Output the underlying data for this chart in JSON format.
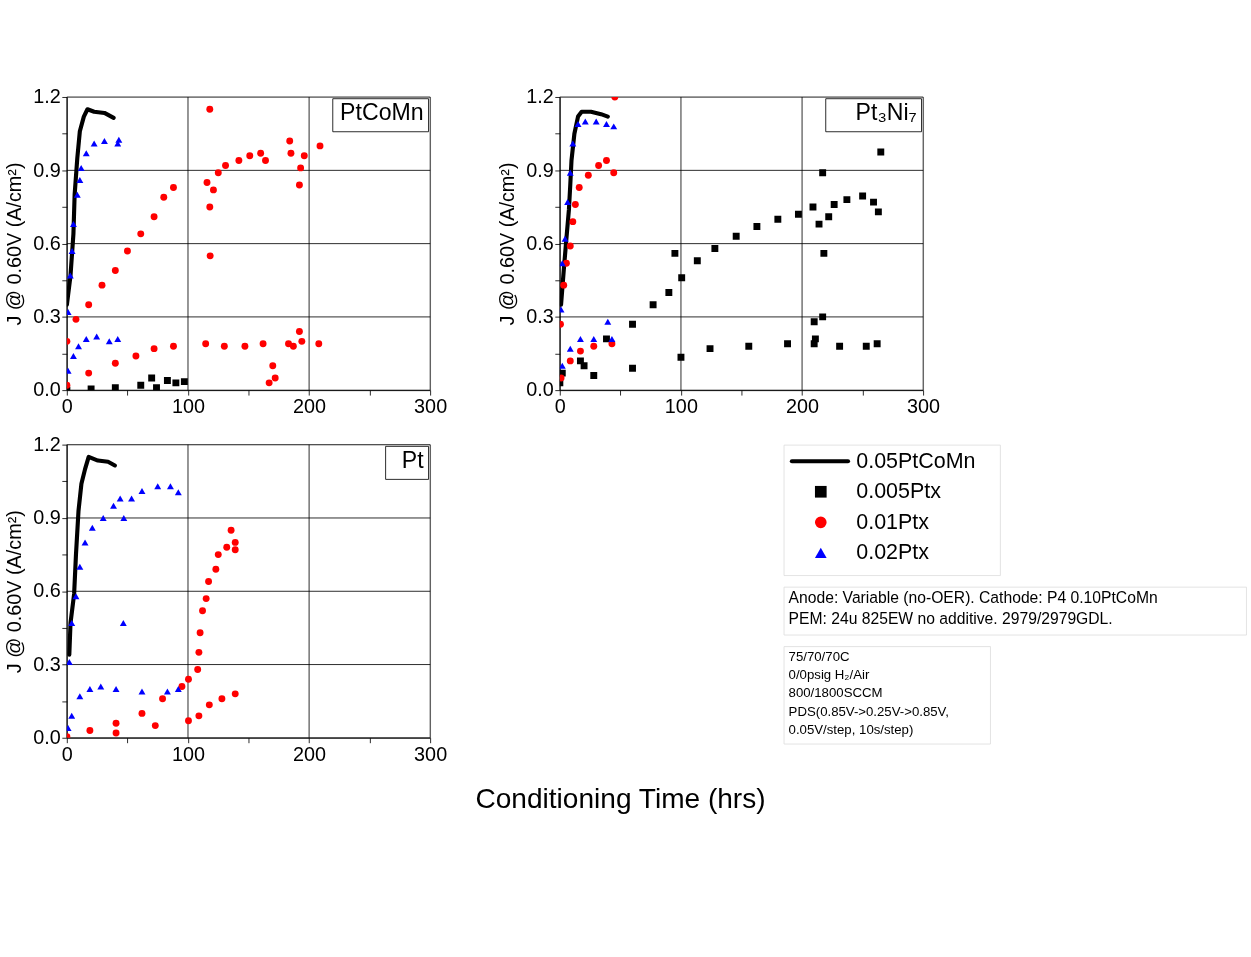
{
  "chart_data": [
    {
      "type": "scatter",
      "title": "PtCoMn",
      "ylabel": "J @ 0.60V (A/cm²)",
      "xlim": [
        0,
        300
      ],
      "ylim": [
        0,
        1.2
      ],
      "xticks": [
        0,
        {
          "value": 50,
          "label": null
        },
        100,
        {
          "value": 150,
          "label": null
        },
        200,
        {
          "value": 250,
          "label": null
        },
        300
      ],
      "yticks": [
        {
          "value": 0,
          "label": "0.0"
        },
        {
          "value": 0.15,
          "label": null
        },
        0.3,
        {
          "value": 0.45,
          "label": null
        },
        0.6,
        {
          "value": 0.75,
          "label": null
        },
        0.9,
        {
          "value": 1.05,
          "label": null
        },
        1.2
      ],
      "grid": true,
      "series": [
        {
          "type": "line",
          "color": "#000000",
          "marker": "none",
          "x": [
            0,
            3,
            5.4,
            6.4,
            8.6,
            10.7,
            14,
            17,
            22.5,
            31,
            38.6
          ],
          "values": [
            0.35,
            0.47,
            0.64,
            0.8,
            0.95,
            1.06,
            1.12,
            1.15,
            1.14,
            1.135,
            1.115
          ]
        },
        {
          "type": "scatter",
          "color": "#000000",
          "marker": "square",
          "x": [
            0,
            20,
            40,
            61,
            70,
            74,
            83,
            90,
            97
          ],
          "values": [
            0.0,
            0.005,
            0.01,
            0.02,
            0.05,
            0.01,
            0.04,
            0.03,
            0.035
          ]
        },
        {
          "type": "scatter",
          "color": "#ff0000",
          "marker": "circle",
          "x": [
            0,
            7.5,
            18,
            29,
            40,
            50,
            61,
            72,
            80,
            88,
            115.7,
            118,
            118,
            118.3,
            121,
            125,
            131,
            142,
            151,
            160,
            164,
            184,
            185,
            192,
            193,
            196,
            209
          ],
          "values": [
            0.2,
            0.29,
            0.35,
            0.43,
            0.49,
            0.57,
            0.64,
            0.71,
            0.79,
            0.83,
            0.85,
            0.75,
            1.15,
            0.55,
            0.82,
            0.89,
            0.92,
            0.94,
            0.96,
            0.97,
            0.94,
            1.02,
            0.97,
            0.84,
            0.91,
            0.96,
            1.0
          ]
        },
        {
          "type": "scatter",
          "color": "#ff0000",
          "marker": "circle",
          "x": [
            0,
            18,
            40,
            57,
            72,
            88,
            114.6,
            130,
            147,
            162,
            167,
            170,
            172,
            183,
            187,
            192,
            194,
            208
          ],
          "values": [
            0.02,
            0.07,
            0.11,
            0.14,
            0.17,
            0.18,
            0.19,
            0.18,
            0.18,
            0.19,
            0.03,
            0.1,
            0.05,
            0.19,
            0.18,
            0.24,
            0.2,
            0.19
          ]
        },
        {
          "type": "scatter",
          "color": "#0000ff",
          "marker": "triangle",
          "x": [
            1,
            2.8,
            4.3,
            5.4,
            8.6,
            10.7,
            11.8,
            16,
            22.5,
            31,
            42,
            42.9
          ],
          "values": [
            0.32,
            0.47,
            0.57,
            0.68,
            0.8,
            0.86,
            0.91,
            0.97,
            1.01,
            1.02,
            1.01,
            1.025
          ]
        },
        {
          "type": "scatter",
          "color": "#0000ff",
          "marker": "triangle",
          "x": [
            1,
            5.4,
            9.6,
            16,
            24.6,
            35,
            42
          ],
          "values": [
            0.08,
            0.14,
            0.18,
            0.21,
            0.22,
            0.2,
            0.21
          ]
        }
      ]
    },
    {
      "type": "scatter",
      "title": "Pt₃Ni₇",
      "ylabel": "J @ 0.60V (A/cm²)",
      "xlim": [
        0,
        300
      ],
      "ylim": [
        0,
        1.2
      ],
      "xticks": [
        0,
        {
          "value": 50,
          "label": null
        },
        100,
        {
          "value": 150,
          "label": null
        },
        200,
        {
          "value": 250,
          "label": null
        },
        300
      ],
      "yticks": [
        {
          "value": 0,
          "label": "0.0"
        },
        {
          "value": 0.15,
          "label": null
        },
        0.3,
        {
          "value": 0.45,
          "label": null
        },
        0.6,
        {
          "value": 0.75,
          "label": null
        },
        0.9,
        {
          "value": 1.05,
          "label": null
        },
        1.2
      ],
      "grid": true,
      "legend": "bottom",
      "annotations": [
        "Anode:  Variable (no-OER).  Cathode:  P4 0.10PtCoMn\nPEM:  24u 825EW no additive.  2979/2979GDL.",
        "75/70/70C\n0/0psig H₂/Air\n800/1800SCCM\nPDS(0.85V->0.25V->0.85V,\n 0.05V/step, 10s/step)"
      ],
      "series": [
        {
          "name": "0.05PtCoMn",
          "type": "line",
          "color": "#000000",
          "marker": "none",
          "x": [
            1,
            3.2,
            5.4,
            7.5,
            8.6,
            9.6,
            12,
            15,
            18,
            25.7,
            34,
            39.6
          ],
          "values": [
            0.35,
            0.49,
            0.62,
            0.74,
            0.84,
            0.94,
            1.05,
            1.12,
            1.14,
            1.14,
            1.13,
            1.12
          ]
        },
        {
          "name": "0.005Ptx",
          "type": "scatter",
          "color": "#000000",
          "marker": "square",
          "x": [
            2,
            17,
            20,
            38.5,
            60,
            77,
            90,
            95,
            100.6,
            113.5,
            128,
            145.6,
            162.7,
            180,
            197,
            209,
            214,
            217,
            218,
            222,
            226.5,
            237,
            250,
            259,
            263,
            265
          ],
          "values": [
            0.07,
            0.12,
            0.1,
            0.21,
            0.27,
            0.35,
            0.4,
            0.56,
            0.46,
            0.53,
            0.58,
            0.63,
            0.67,
            0.7,
            0.72,
            0.75,
            0.68,
            0.89,
            0.56,
            0.71,
            0.76,
            0.78,
            0.795,
            0.77,
            0.73,
            0.975
          ]
        },
        {
          "type": "scatter",
          "color": "#000000",
          "marker": "square",
          "x": [
            0,
            28,
            60,
            100,
            124,
            156,
            188,
            210,
            210,
            211,
            217,
            231,
            253,
            262
          ],
          "values": [
            0.03,
            0.06,
            0.09,
            0.135,
            0.17,
            0.18,
            0.19,
            0.19,
            0.28,
            0.21,
            0.3,
            0.18,
            0.18,
            0.19
          ]
        },
        {
          "name": "0.01Ptx",
          "type": "scatter",
          "color": "#ff0000",
          "marker": "circle",
          "x": [
            0.5,
            3.2,
            5.4,
            8.6,
            10.7,
            12.8,
            16,
            23.5,
            32,
            38.5,
            44.5,
            45.4
          ],
          "values": [
            0.27,
            0.43,
            0.52,
            0.59,
            0.69,
            0.76,
            0.83,
            0.88,
            0.92,
            0.94,
            0.89,
            1.2
          ]
        },
        {
          "type": "scatter",
          "color": "#ff0000",
          "marker": "circle",
          "x": [
            1,
            8.6,
            17,
            28,
            43
          ],
          "values": [
            0.05,
            0.12,
            0.16,
            0.18,
            0.19
          ]
        },
        {
          "name": "0.02Ptx",
          "type": "scatter",
          "color": "#0000ff",
          "marker": "triangle",
          "x": [
            1,
            2,
            4.3,
            6.4,
            8.6,
            10.7,
            15,
            21,
            30,
            38.5,
            44.5
          ],
          "values": [
            0.33,
            0.52,
            0.62,
            0.77,
            0.89,
            1.01,
            1.09,
            1.1,
            1.1,
            1.09,
            1.08
          ]
        },
        {
          "type": "scatter",
          "color": "#0000ff",
          "marker": "triangle",
          "x": [
            2,
            8.6,
            17,
            28,
            39.6,
            43
          ],
          "values": [
            0.1,
            0.17,
            0.21,
            0.21,
            0.28,
            0.21
          ]
        }
      ]
    },
    {
      "type": "scatter",
      "title": "Pt",
      "ylabel": "J @ 0.60V (A/cm²)",
      "xlabel": "Conditioning Time (hrs)",
      "xlim": [
        0,
        300
      ],
      "ylim": [
        0,
        1.2
      ],
      "xticks": [
        0,
        {
          "value": 50,
          "label": null
        },
        100,
        {
          "value": 150,
          "label": null
        },
        200,
        {
          "value": 250,
          "label": null
        },
        300
      ],
      "yticks": [
        {
          "value": 0,
          "label": "0.0"
        },
        {
          "value": 0.15,
          "label": null
        },
        0.3,
        {
          "value": 0.45,
          "label": null
        },
        0.6,
        {
          "value": 0.75,
          "label": null
        },
        0.9,
        {
          "value": 1.05,
          "label": null
        },
        1.2
      ],
      "grid": true,
      "series": [
        {
          "type": "line",
          "color": "#000000",
          "marker": "none",
          "x": [
            2,
            3,
            6,
            7.5,
            9.6,
            12,
            15,
            18,
            25.6,
            34,
            39.6
          ],
          "values": [
            0.34,
            0.47,
            0.59,
            0.75,
            0.93,
            1.04,
            1.1,
            1.15,
            1.135,
            1.13,
            1.115
          ]
        },
        {
          "type": "scatter",
          "color": "#ff0000",
          "marker": "circle",
          "x": [
            19,
            40.6,
            62,
            79,
            95,
            100.4,
            108,
            109,
            110,
            112,
            115,
            117,
            123,
            125,
            132,
            139,
            139,
            135.6
          ],
          "values": [
            0.03,
            0.06,
            0.1,
            0.16,
            0.21,
            0.24,
            0.28,
            0.35,
            0.43,
            0.52,
            0.57,
            0.64,
            0.69,
            0.75,
            0.78,
            0.77,
            0.8,
            0.85
          ]
        },
        {
          "type": "scatter",
          "color": "#ff0000",
          "marker": "circle",
          "x": [
            0,
            40.6,
            73,
            100.4,
            109,
            117.6,
            128,
            139
          ],
          "values": [
            0.005,
            0.02,
            0.05,
            0.07,
            0.09,
            0.135,
            0.16,
            0.18
          ]
        },
        {
          "type": "scatter",
          "color": "#0000ff",
          "marker": "triangle",
          "x": [
            2,
            4,
            7.5,
            10.7,
            15,
            21,
            30,
            38.5,
            44,
            46.6,
            47,
            53.4,
            62,
            75,
            85.5,
            92
          ],
          "values": [
            0.31,
            0.47,
            0.58,
            0.7,
            0.8,
            0.86,
            0.9,
            0.95,
            0.98,
            0.47,
            0.9,
            0.98,
            1.01,
            1.03,
            1.03,
            1.005
          ]
        },
        {
          "type": "scatter",
          "color": "#0000ff",
          "marker": "triangle",
          "x": [
            1,
            4,
            10.7,
            19,
            28,
            40.6,
            62,
            83,
            92
          ],
          "values": [
            0.04,
            0.09,
            0.17,
            0.2,
            0.21,
            0.2,
            0.19,
            0.19,
            0.2
          ]
        }
      ]
    }
  ]
}
